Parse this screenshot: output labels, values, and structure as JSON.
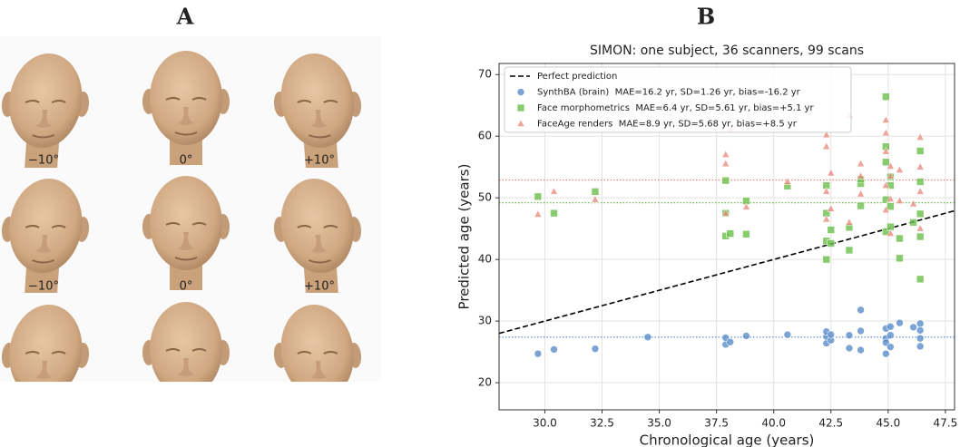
{
  "panel_labels": [
    "A",
    "B"
  ],
  "panel_a": {
    "angle_labels": [
      "−10°",
      "0°",
      "+10°"
    ]
  },
  "chart_data": {
    "type": "scatter",
    "title": "SIMON: one subject, 36 scanners, 99 scans",
    "x_label": "Chronological age (years)",
    "y_label": "Predicted age (years)",
    "xlim": [
      28.0,
      47.9
    ],
    "ylim": [
      15.6,
      71.8
    ],
    "xticks": [
      {
        "value": 30,
        "label": "30.0"
      },
      32.5,
      {
        "value": 35,
        "label": "35.0"
      },
      37.5,
      {
        "value": 40,
        "label": "40.0"
      },
      42.5,
      {
        "value": 45,
        "label": "45.0"
      },
      47.5
    ],
    "yticks": [
      20,
      30,
      40,
      50,
      60,
      70
    ],
    "grid": true,
    "legend": "upper-left",
    "series": [
      {
        "name": "Perfect prediction",
        "marker": "dashed-line",
        "color": "#000000",
        "x": [
          28.0,
          47.9
        ],
        "values": [
          28.0,
          47.9
        ]
      },
      {
        "name": "SynthBA (brain)  MAE=16.2 yr, SD=1.26 yr, bias=-16.2 yr",
        "marker": "circle",
        "color": "#4f86c6",
        "mean": 27.4,
        "x": [
          29.7,
          30.4,
          32.2,
          34.5,
          37.9,
          37.9,
          38.1,
          38.8,
          40.6,
          42.3,
          42.3,
          42.3,
          42.5,
          42.5,
          43.3,
          43.3,
          43.8,
          43.8,
          43.8,
          44.9,
          44.9,
          44.9,
          44.9,
          45.1,
          45.1,
          45.1,
          45.5,
          46.1,
          46.4,
          46.4,
          46.4,
          46.4
        ],
        "values": [
          24.7,
          25.4,
          25.5,
          27.4,
          26.2,
          27.3,
          26.6,
          27.6,
          27.8,
          26.4,
          27.5,
          28.3,
          26.9,
          27.8,
          25.6,
          27.7,
          25.3,
          28.4,
          31.8,
          24.7,
          27.2,
          28.8,
          26.5,
          25.8,
          27.7,
          29.1,
          29.7,
          29.0,
          25.9,
          27.2,
          28.5,
          29.6
        ]
      },
      {
        "name": "Face morphometrics  MAE=6.4 yr, SD=5.61 yr, bias=+5.1 yr",
        "marker": "square",
        "color": "#6abf4b",
        "mean": 49.2,
        "x": [
          29.7,
          30.4,
          32.2,
          37.9,
          37.9,
          37.9,
          38.1,
          38.8,
          38.8,
          40.6,
          42.3,
          42.3,
          42.3,
          42.3,
          42.5,
          42.5,
          43.3,
          43.3,
          43.8,
          43.8,
          43.8,
          44.9,
          44.9,
          44.9,
          44.9,
          44.9,
          45.1,
          45.1,
          45.1,
          45.1,
          45.5,
          45.5,
          46.1,
          46.4,
          46.4,
          46.4,
          46.4,
          46.4
        ],
        "values": [
          50.2,
          47.5,
          51.0,
          43.8,
          47.5,
          52.8,
          44.2,
          44.1,
          49.5,
          51.9,
          40.0,
          43.0,
          47.5,
          52.0,
          42.6,
          44.8,
          41.5,
          45.2,
          48.7,
          52.3,
          53.0,
          44.5,
          49.7,
          55.8,
          58.3,
          66.4,
          45.3,
          48.6,
          52.0,
          53.4,
          40.2,
          43.4,
          46.0,
          36.8,
          43.7,
          47.4,
          52.6,
          57.6
        ]
      },
      {
        "name": "FaceAge renders  MAE=8.9 yr, SD=5.68 yr, bias=+8.5 yr",
        "marker": "triangle",
        "color": "#e8847a",
        "mean": 52.9,
        "x": [
          29.7,
          30.4,
          32.2,
          37.9,
          37.9,
          37.9,
          38.1,
          38.8,
          40.6,
          42.3,
          42.3,
          42.3,
          42.3,
          42.5,
          42.5,
          43.3,
          43.3,
          43.8,
          43.8,
          43.8,
          44.9,
          44.9,
          44.9,
          44.9,
          44.9,
          45.1,
          45.1,
          45.1,
          45.1,
          45.5,
          45.5,
          46.1,
          46.4,
          46.4,
          46.4,
          46.4
        ],
        "values": [
          47.3,
          51.0,
          49.7,
          47.5,
          55.5,
          57.0,
          61.0,
          48.5,
          52.6,
          46.5,
          51.0,
          58.3,
          60.2,
          48.2,
          54.0,
          46.0,
          63.4,
          50.6,
          53.5,
          55.5,
          48.0,
          52.0,
          57.5,
          60.5,
          62.6,
          44.2,
          49.8,
          53.5,
          55.1,
          49.5,
          54.5,
          49.0,
          45.0,
          51.0,
          55.0,
          59.8
        ]
      }
    ]
  }
}
